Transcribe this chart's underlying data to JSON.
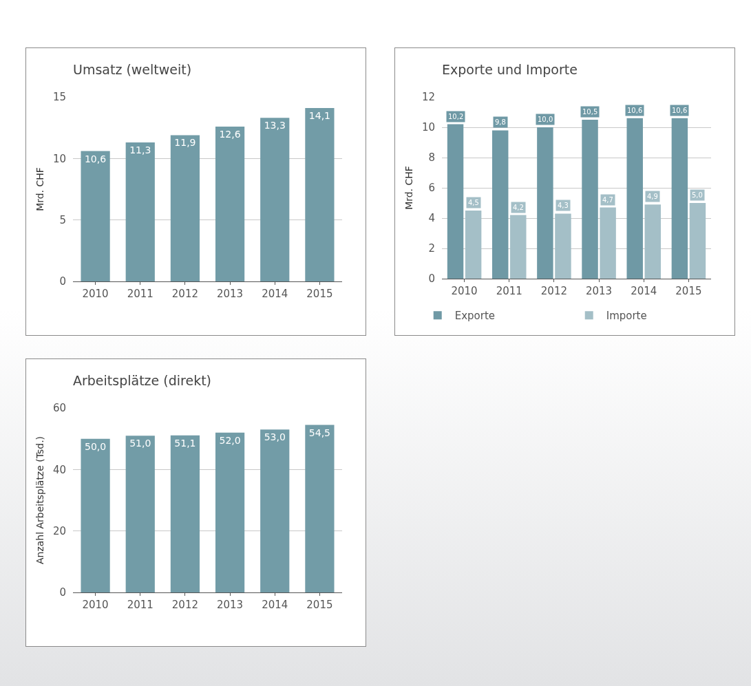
{
  "chart_data": [
    {
      "type": "bar",
      "title": "Umsatz (weltweit)",
      "ylabel": "Mrd. CHF",
      "categories": [
        "2010",
        "2011",
        "2012",
        "2013",
        "2014",
        "2015"
      ],
      "values": [
        10.6,
        11.3,
        11.9,
        12.6,
        13.3,
        14.1
      ],
      "value_labels": [
        "10,6",
        "11,3",
        "11,9",
        "12,6",
        "13,3",
        "14,1"
      ],
      "color": "#729ca7",
      "ylim": [
        0,
        15
      ],
      "yticks": [
        0,
        5,
        10,
        15
      ],
      "grid": "y",
      "legend": false
    },
    {
      "type": "bar",
      "title": "Exporte und Importe",
      "ylabel": "Mrd. CHF",
      "categories": [
        "2010",
        "2011",
        "2012",
        "2013",
        "2014",
        "2015"
      ],
      "series": [
        {
          "name": "Exporte",
          "color": "#6f99a5",
          "values": [
            10.2,
            9.8,
            10.0,
            10.5,
            10.6,
            10.6
          ],
          "value_labels": [
            "10,2",
            "9,8",
            "10,0",
            "10,5",
            "10,6",
            "10,6"
          ]
        },
        {
          "name": "Importe",
          "color": "#a4bfc7",
          "values": [
            4.5,
            4.2,
            4.3,
            4.7,
            4.9,
            5.0
          ],
          "value_labels": [
            "4,5",
            "4,2",
            "4,3",
            "4,7",
            "4,9",
            "5,0"
          ]
        }
      ],
      "ylim": [
        0,
        12
      ],
      "yticks": [
        0,
        2,
        4,
        6,
        8,
        10,
        12
      ],
      "grid": "y",
      "legend": "bottom"
    },
    {
      "type": "bar",
      "title": "Arbeitsplätze (direkt)",
      "ylabel": "Anzahl Arbeitsplätze (Tsd.)",
      "categories": [
        "2010",
        "2011",
        "2012",
        "2013",
        "2014",
        "2015"
      ],
      "values": [
        50.0,
        51.0,
        51.1,
        52.0,
        53.0,
        54.5
      ],
      "value_labels": [
        "50,0",
        "51,0",
        "51,1",
        "52,0",
        "53,0",
        "54,5"
      ],
      "color": "#729ca7",
      "ylim": [
        0,
        60
      ],
      "yticks": [
        0,
        20,
        40,
        60
      ],
      "grid": "y",
      "legend": false
    }
  ]
}
